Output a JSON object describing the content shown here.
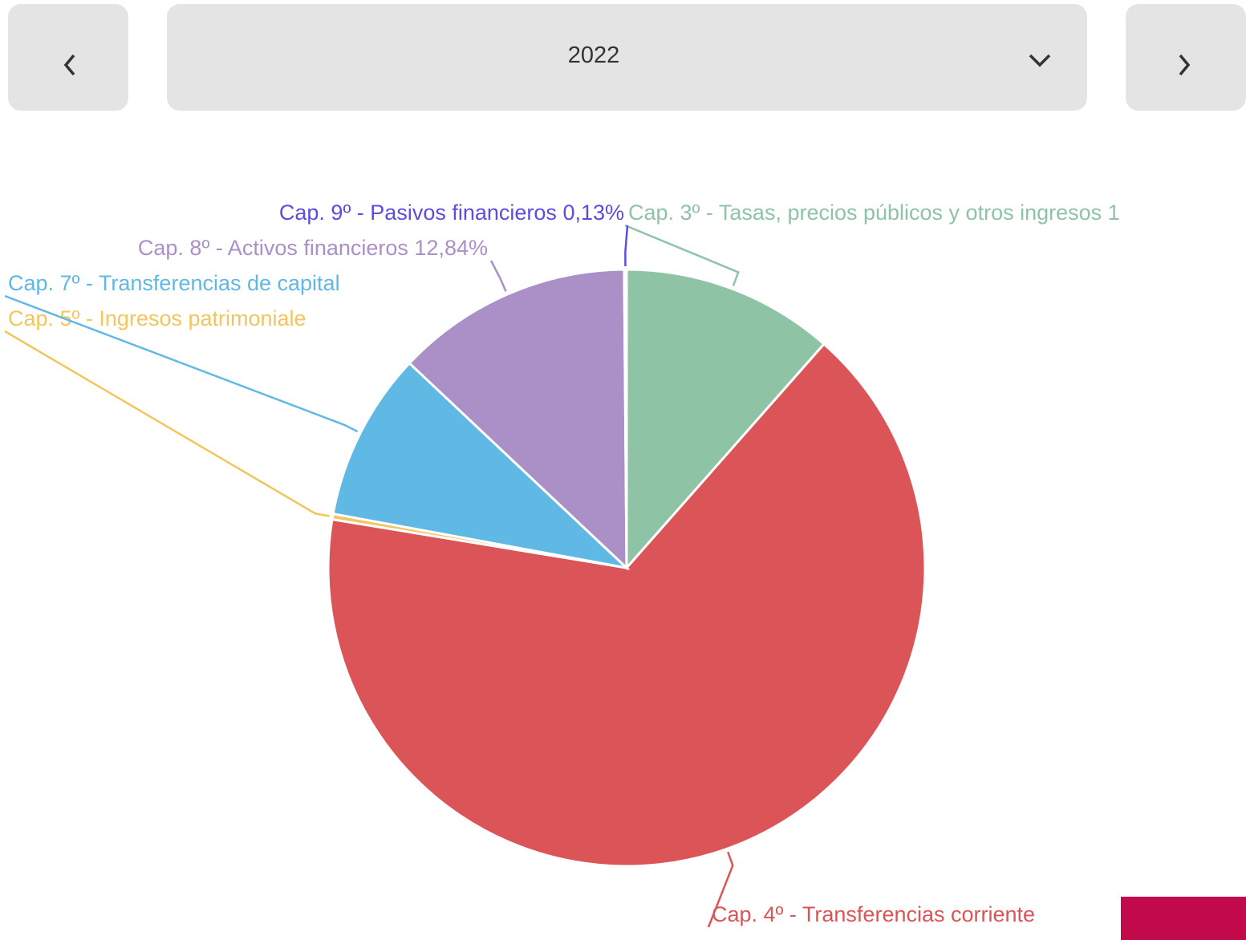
{
  "selector": {
    "value": "2022"
  },
  "chart_data": {
    "type": "pie",
    "categories": [
      "Cap. 3º - Tasas, precios públicos y otros ingresos 1",
      "Cap. 4º - Transferencias corriente",
      "Cap. 5º - Ingresos patrimoniale",
      "Cap. 7º - Transferencias de capital",
      "Cap. 8º - Activos financieros",
      "Cap. 9º - Pasivos financieros"
    ],
    "values": [
      11.5,
      66.1,
      0.3,
      9.13,
      12.84,
      0.13
    ],
    "value_labels": [
      null,
      null,
      null,
      null,
      "12,84%",
      "0,13%"
    ],
    "colors": [
      "#8fc3a6",
      "#db5457",
      "#f2c65c",
      "#60b8e5",
      "#ab90c8",
      "#5b4de0"
    ]
  }
}
